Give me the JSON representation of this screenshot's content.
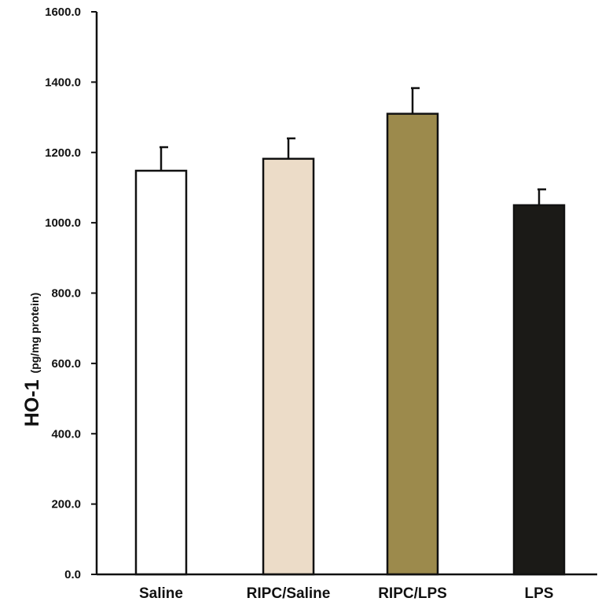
{
  "chart_data": {
    "type": "bar",
    "ylabel": "HO-1",
    "ylabel_unit": "(pg/mg protein)",
    "ylim": [
      0,
      1600
    ],
    "yticks": [
      "0.0",
      "200.0",
      "400.0",
      "600.0",
      "800.0",
      "1000.0",
      "1200.0",
      "1400.0",
      "1600.0"
    ],
    "ytick_values": [
      0,
      200,
      400,
      600,
      800,
      1000,
      1200,
      1400,
      1600
    ],
    "categories": [
      "Saline",
      "RIPC/Saline",
      "RIPC/LPS",
      "LPS"
    ],
    "values": [
      1148,
      1182,
      1310,
      1050
    ],
    "error_upper": [
      1215,
      1240,
      1383,
      1095
    ],
    "colors": [
      "#ffffff",
      "#ecdcc8",
      "#9c8a4c",
      "#1b1a17"
    ],
    "grid": false,
    "legend": "none"
  }
}
